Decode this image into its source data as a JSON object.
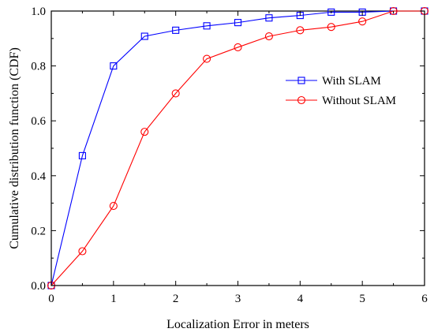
{
  "chart_data": {
    "type": "line",
    "title": "",
    "xlabel": "Localization Error in meters",
    "ylabel": "Cumulative distribution function (CDF)",
    "xlim": [
      0,
      6
    ],
    "ylim": [
      0,
      1.0
    ],
    "xticks": [
      "0",
      "1",
      "2",
      "3",
      "4",
      "5",
      "6"
    ],
    "yticks": [
      "0.0",
      "0.2",
      "0.4",
      "0.6",
      "0.8",
      "1.0"
    ],
    "grid": false,
    "legend_position": "right",
    "series": [
      {
        "name": "With SLAM",
        "color": "#0000ff",
        "marker": "square",
        "x": [
          0,
          0.5,
          1.0,
          1.5,
          2.0,
          2.5,
          3.0,
          3.5,
          4.0,
          4.5,
          5.0,
          5.5,
          6.0
        ],
        "y": [
          0.0,
          0.473,
          0.8,
          0.908,
          0.93,
          0.946,
          0.958,
          0.975,
          0.984,
          0.996,
          0.996,
          1.0,
          1.0
        ]
      },
      {
        "name": "Without SLAM",
        "color": "#ff0000",
        "marker": "circle",
        "x": [
          0,
          0.5,
          1.0,
          1.5,
          2.0,
          2.5,
          3.0,
          3.5,
          4.0,
          4.5,
          5.0,
          5.5,
          6.0
        ],
        "y": [
          0.0,
          0.125,
          0.29,
          0.56,
          0.7,
          0.826,
          0.868,
          0.908,
          0.93,
          0.942,
          0.962,
          1.0,
          1.0
        ]
      }
    ]
  }
}
